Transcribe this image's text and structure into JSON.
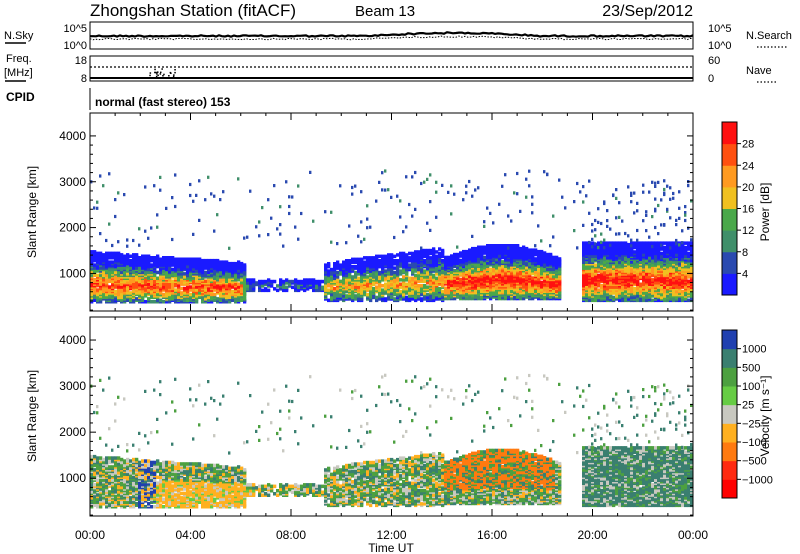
{
  "header": {
    "station": "Zhongshan Station (fitACF)",
    "beam": "Beam 13",
    "date": "23/Sep/2012"
  },
  "top_panels": {
    "nsky_label": "N.Sky",
    "nsky_ticks": [
      "10^5",
      "10^0"
    ],
    "nsearch_label": "N.Search",
    "nsearch_ticks": [
      "10^5",
      "10^0"
    ],
    "freq_label_1": "Freq.",
    "freq_label_2": "[MHz]",
    "freq_ticks": [
      "18",
      "8"
    ],
    "nave_label": "Nave",
    "nave_ticks": [
      "60",
      "0"
    ],
    "cpid_label": "CPID",
    "cpid_text": "normal (fast stereo) 153"
  },
  "colors": {
    "power_scale": [
      "#1a1aff",
      "#2a4ab0",
      "#3f8f6a",
      "#4aa84a",
      "#f0c020",
      "#ff9a20",
      "#ff5010",
      "#ff1010"
    ],
    "velocity_scale": [
      "#2040b0",
      "#3a7f70",
      "#4ca040",
      "#66cc44",
      "#c8c8c0",
      "#ffb020",
      "#ff7a10",
      "#ff2a10",
      "#ff0000"
    ]
  },
  "chart_data": [
    {
      "type": "heatmap",
      "ylabel": "Slant Range [km]",
      "xlabel": "Time UT",
      "x_tick_labels": [
        "00:00",
        "04:00",
        "08:00",
        "12:00",
        "16:00",
        "20:00",
        "00:00"
      ],
      "x_hours": [
        0,
        4,
        8,
        12,
        16,
        20,
        24
      ],
      "y_tick_labels": [
        "1000",
        "2000",
        "3000",
        "4000"
      ],
      "y_ticks": [
        1000,
        2000,
        3000,
        4000
      ],
      "ylim": [
        180,
        4500
      ],
      "xlim": [
        0,
        24
      ],
      "colorbar": {
        "label": "Power [dB]",
        "tick_labels": [
          "4",
          "8",
          "12",
          "16",
          "20",
          "24",
          "28"
        ],
        "range": [
          0,
          32
        ]
      }
    },
    {
      "type": "heatmap",
      "ylabel": "Slant Range [km]",
      "xlabel": "Time UT",
      "x_tick_labels": [
        "00:00",
        "04:00",
        "08:00",
        "12:00",
        "16:00",
        "20:00",
        "00:00"
      ],
      "x_hours": [
        0,
        4,
        8,
        12,
        16,
        20,
        24
      ],
      "y_tick_labels": [
        "1000",
        "2000",
        "3000",
        "4000"
      ],
      "y_ticks": [
        1000,
        2000,
        3000,
        4000
      ],
      "ylim": [
        180,
        4500
      ],
      "xlim": [
        0,
        24
      ],
      "colorbar": {
        "label": "Velocity [m s⁻¹]",
        "tick_labels": [
          "1000",
          "500",
          "100",
          "25",
          "−25",
          "−100",
          "−500",
          "−1000"
        ]
      }
    }
  ]
}
